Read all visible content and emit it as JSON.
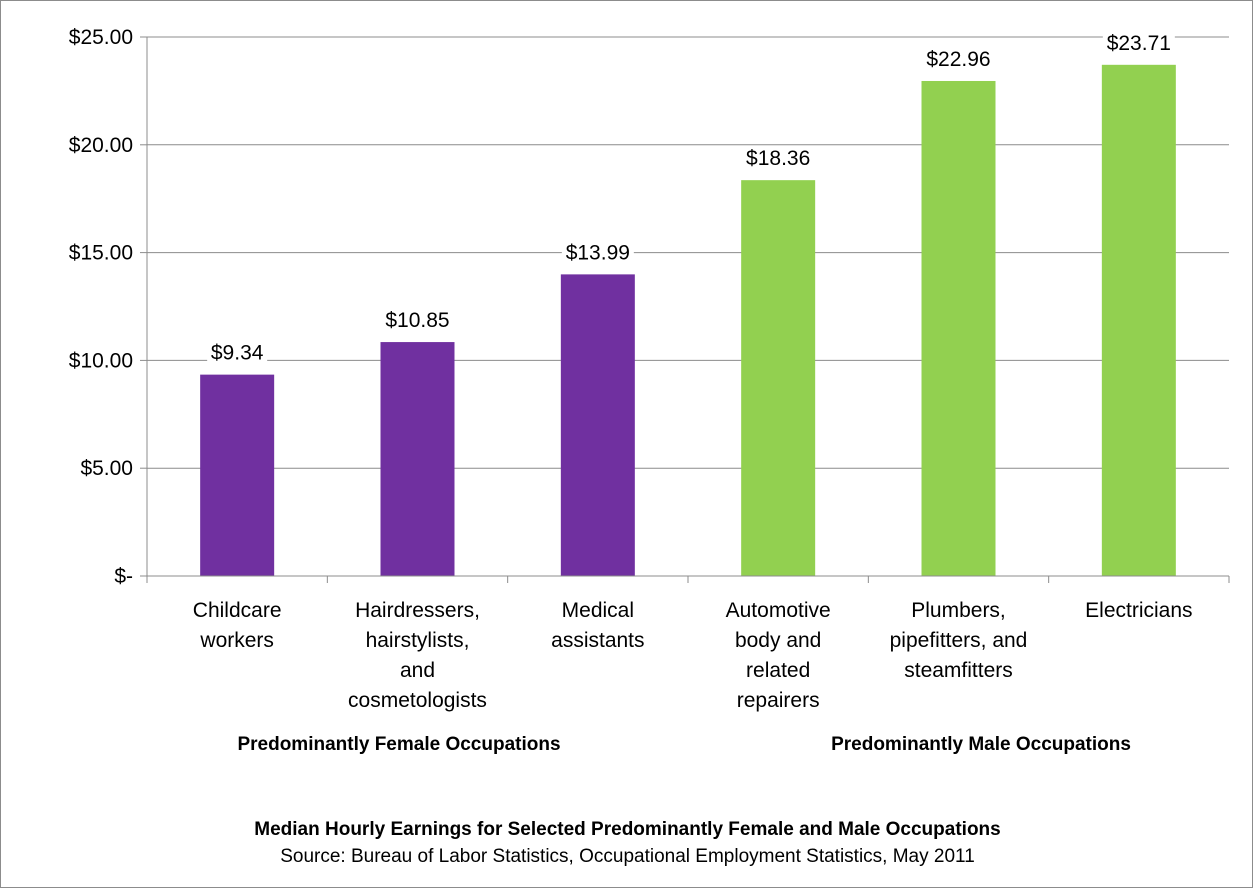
{
  "chart_data": {
    "type": "bar",
    "categories": [
      [
        "Childcare",
        "workers"
      ],
      [
        "Hairdressers,",
        "hairstylists,",
        "and",
        "cosmetologists"
      ],
      [
        "Medical",
        "assistants"
      ],
      [
        "Automotive",
        "body and",
        "related",
        "repairers"
      ],
      [
        "Plumbers,",
        "pipefitters, and",
        "steamfitters"
      ],
      [
        "Electricians"
      ]
    ],
    "values": [
      9.34,
      10.85,
      13.99,
      18.36,
      22.96,
      23.71
    ],
    "data_labels": [
      "$9.34",
      "$10.85",
      "$13.99",
      "$18.36",
      "$22.96",
      "$23.71"
    ],
    "bar_colors": [
      "#7030a0",
      "#7030a0",
      "#7030a0",
      "#92d050",
      "#92d050",
      "#92d050"
    ],
    "ylim": [
      0,
      25
    ],
    "yticks": [
      0,
      5,
      10,
      15,
      20,
      25
    ],
    "ytick_labels": [
      "$-",
      "$5.00",
      "$10.00",
      "$15.00",
      "$20.00",
      "$25.00"
    ],
    "grid": true,
    "groups": [
      {
        "label": "Predominantly Female Occupations",
        "categories": [
          0,
          1,
          2
        ]
      },
      {
        "label": "Predominantly Male Occupations",
        "categories": [
          3,
          4,
          5
        ]
      }
    ],
    "title": "Median Hourly Earnings for Selected Predominantly Female and Male Occupations",
    "subtitle": "Source: Bureau of Labor Statistics, Occupational Employment Statistics, May 2011",
    "xlabel": "",
    "ylabel": ""
  },
  "colors": {
    "female": "#7030a0",
    "male": "#92d050",
    "grid": "#8c8c8c",
    "axis": "#8c8c8c"
  }
}
